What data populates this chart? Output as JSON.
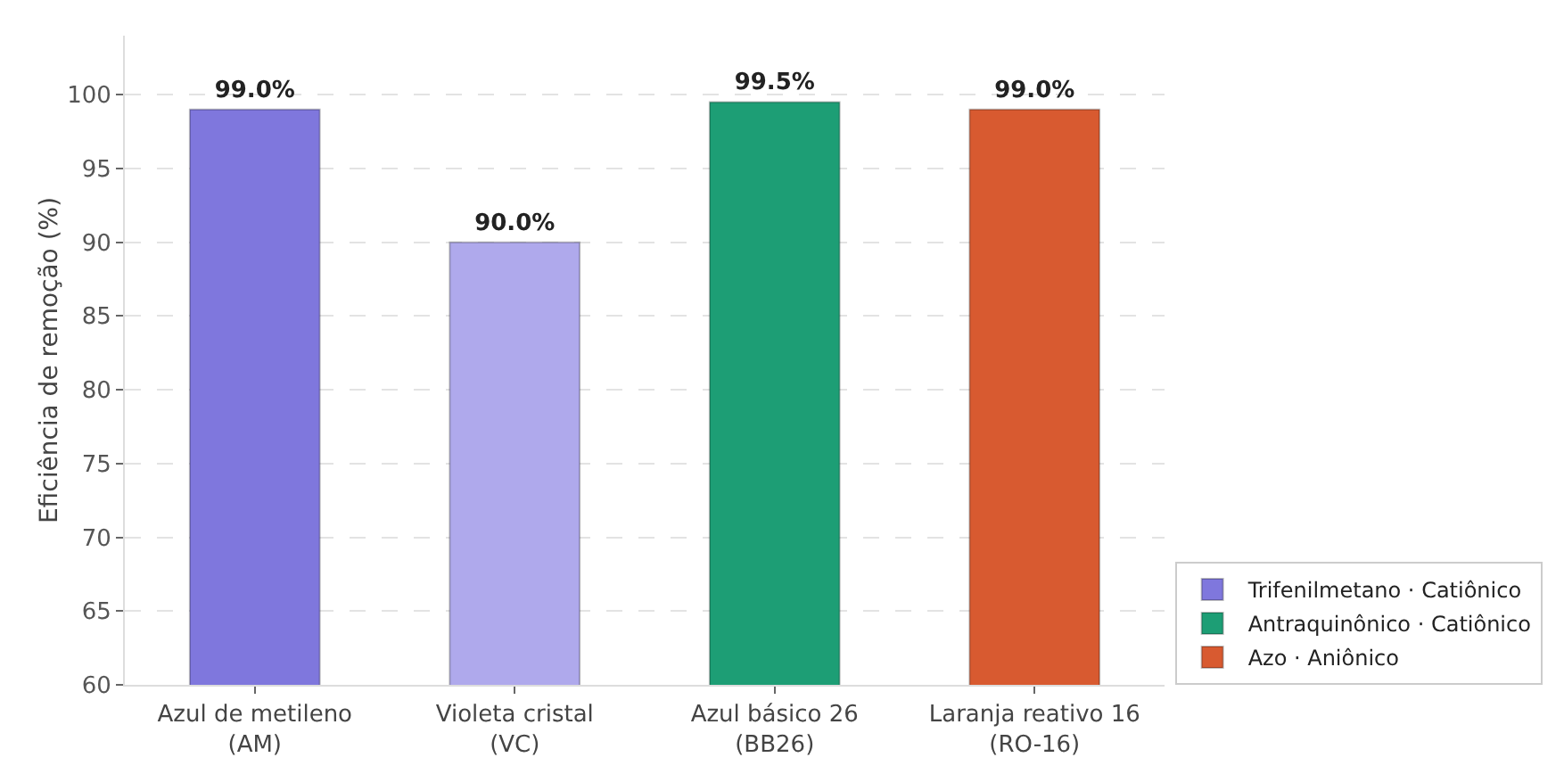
{
  "chart_data": {
    "type": "bar",
    "ylabel": "Eficiência de remoção (%)",
    "categories": [
      "Azul de metileno\n(AM)",
      "Violeta cristal\n(VC)",
      "Azul básico 26\n(BB26)",
      "Laranja reativo 16\n(RO-16)"
    ],
    "series": [
      {
        "name": "Trifenilmetano · Catiônico",
        "color": "#7f77dd",
        "colors": [
          "#7f77dd",
          "#afa9ec",
          null,
          null
        ],
        "values": [
          99.0,
          90.0,
          null,
          null
        ],
        "value_labels": [
          "99.0%",
          "90.0%",
          null,
          null
        ]
      },
      {
        "name": "Antraquinônico · Catiônico",
        "color": "#1d9e75",
        "values": [
          null,
          null,
          99.5,
          null
        ],
        "value_labels": [
          null,
          null,
          "99.5%",
          null
        ]
      },
      {
        "name": "Azo · Aniônico",
        "color": "#d85a30",
        "values": [
          null,
          null,
          null,
          99.0
        ],
        "value_labels": [
          null,
          null,
          null,
          "99.0%"
        ]
      }
    ],
    "ylim": [
      60,
      104
    ],
    "yticks": [
      60,
      65,
      70,
      75,
      80,
      85,
      90,
      95,
      100
    ],
    "grid": "y",
    "legend": "bottom right"
  }
}
